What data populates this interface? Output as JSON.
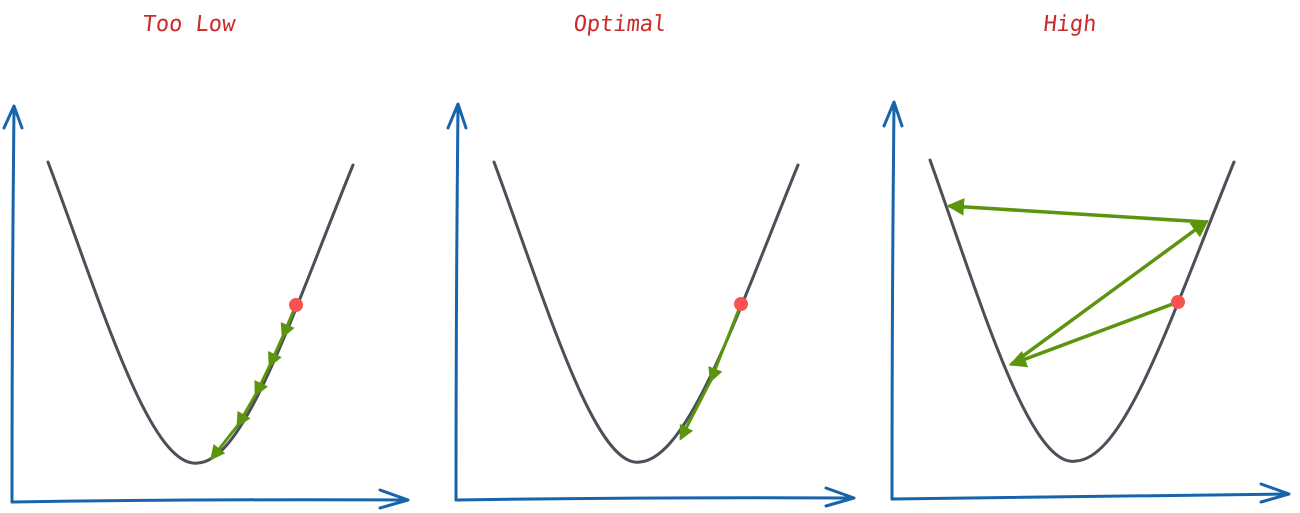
{
  "colors": {
    "title": "#c92a2a",
    "axis": "#1864ab",
    "curve": "#495057",
    "step_arrow": "#5c940d",
    "start_point": "#fa5252"
  },
  "panels": [
    {
      "id": "too-low",
      "title": "Too Low",
      "step_count": 5
    },
    {
      "id": "optimal",
      "title": "Optimal",
      "step_count": 2
    },
    {
      "id": "high",
      "title": "High",
      "step_count": 3
    }
  ]
}
